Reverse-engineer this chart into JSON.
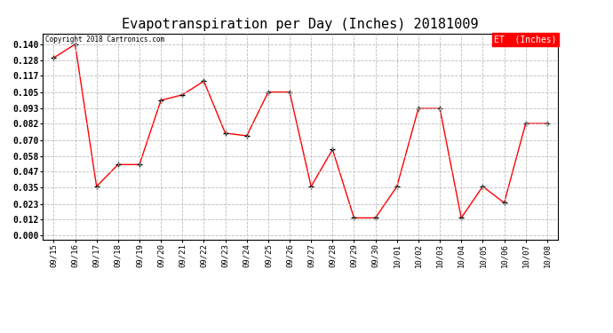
{
  "title": "Evapotranspiration per Day (Inches) 20181009",
  "copyright_text": "Copyright 2018 Cartronics.com",
  "legend_label": "ET  (Inches)",
  "x_labels": [
    "09/15",
    "09/16",
    "09/17",
    "09/18",
    "09/19",
    "09/20",
    "09/21",
    "09/22",
    "09/23",
    "09/24",
    "09/25",
    "09/26",
    "09/27",
    "09/28",
    "09/29",
    "09/30",
    "10/01",
    "10/02",
    "10/03",
    "10/04",
    "10/05",
    "10/06",
    "10/07",
    "10/08"
  ],
  "y_values": [
    0.13,
    0.14,
    0.036,
    0.052,
    0.052,
    0.099,
    0.103,
    0.113,
    0.075,
    0.073,
    0.105,
    0.105,
    0.036,
    0.063,
    0.013,
    0.013,
    0.036,
    0.093,
    0.093,
    0.013,
    0.036,
    0.024,
    0.082,
    0.082
  ],
  "y_ticks": [
    0.0,
    0.012,
    0.023,
    0.035,
    0.047,
    0.058,
    0.07,
    0.082,
    0.093,
    0.105,
    0.117,
    0.128,
    0.14
  ],
  "line_color": "red",
  "marker": "+",
  "marker_color": "black",
  "grid_color": "#bbbbbb",
  "background_color": "#ffffff",
  "title_fontsize": 11,
  "legend_bg": "red",
  "legend_text_color": "white"
}
